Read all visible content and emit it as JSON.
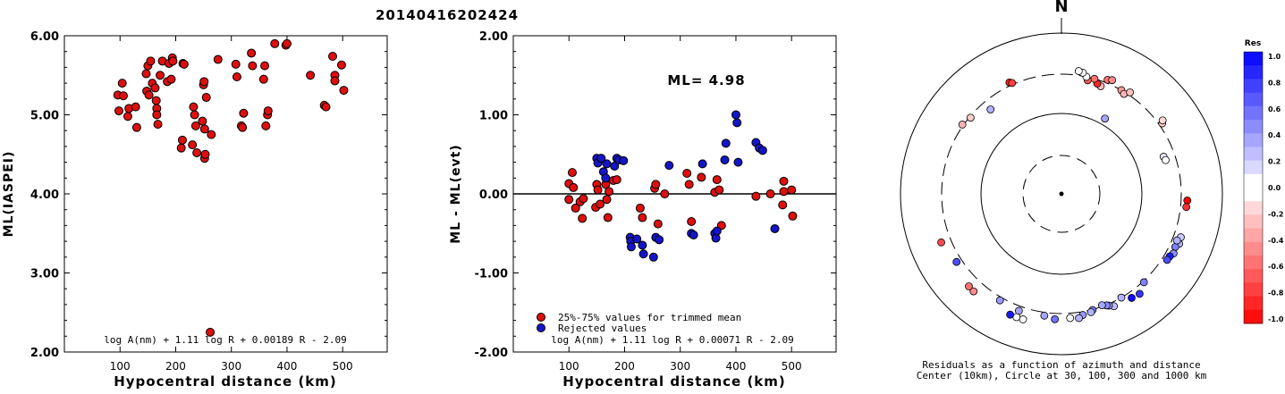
{
  "title": "20140416202424",
  "north_label": "N",
  "polar_caption": [
    "Residuals as a function of azimuth and distance",
    "Center (10km), Circle at 30, 100, 300 and 1000 km"
  ],
  "colorbar": {
    "title": "Res",
    "ticks": [
      "1.0",
      "0.8",
      "0.6",
      "0.4",
      "0.2",
      "0.0",
      "-0.2",
      "-0.4",
      "-0.6",
      "-0.8",
      "-1.0"
    ]
  },
  "colors": {
    "accepted": "#dd0f0f",
    "rejected": "#1515c8"
  },
  "chart_data": [
    {
      "type": "scatter",
      "title": "",
      "xlabel": "Hypocentral distance (km)",
      "ylabel": "ML(IASPEI)",
      "xlim": [
        0,
        580
      ],
      "ylim": [
        2.0,
        6.0
      ],
      "xticks": [
        "100",
        "200",
        "300",
        "400",
        "500"
      ],
      "yticks": [
        "2.00",
        "3.00",
        "4.00",
        "5.00",
        "6.00"
      ],
      "formula": "log A(nm) + 1.11 log R + 0.00189 R - 2.09",
      "points": [
        [
          96,
          5.25
        ],
        [
          98,
          5.05
        ],
        [
          104,
          5.4
        ],
        [
          106,
          5.24
        ],
        [
          114,
          4.98
        ],
        [
          116,
          5.08
        ],
        [
          128,
          5.1
        ],
        [
          130,
          4.84
        ],
        [
          147,
          5.52
        ],
        [
          148,
          5.3
        ],
        [
          150,
          5.62
        ],
        [
          152,
          5.25
        ],
        [
          155,
          5.68
        ],
        [
          158,
          5.4
        ],
        [
          163,
          5.34
        ],
        [
          165,
          5.18
        ],
        [
          166,
          5.08
        ],
        [
          166,
          5.0
        ],
        [
          168,
          4.88
        ],
        [
          172,
          5.5
        ],
        [
          176,
          5.68
        ],
        [
          185,
          5.42
        ],
        [
          188,
          5.65
        ],
        [
          192,
          5.45
        ],
        [
          194,
          5.72
        ],
        [
          195,
          5.68
        ],
        [
          210,
          4.58
        ],
        [
          212,
          4.68
        ],
        [
          213,
          5.65
        ],
        [
          215,
          5.64
        ],
        [
          230,
          4.62
        ],
        [
          232,
          5.1
        ],
        [
          234,
          5.0
        ],
        [
          236,
          4.86
        ],
        [
          238,
          4.52
        ],
        [
          248,
          4.92
        ],
        [
          250,
          5.38
        ],
        [
          251,
          5.42
        ],
        [
          252,
          4.82
        ],
        [
          252,
          4.45
        ],
        [
          253,
          4.5
        ],
        [
          255,
          5.22
        ],
        [
          262,
          2.25
        ],
        [
          264,
          4.75
        ],
        [
          276,
          5.7
        ],
        [
          308,
          5.64
        ],
        [
          310,
          5.48
        ],
        [
          318,
          4.86
        ],
        [
          320,
          4.84
        ],
        [
          322,
          5.02
        ],
        [
          336,
          5.78
        ],
        [
          338,
          5.62
        ],
        [
          358,
          5.45
        ],
        [
          360,
          5.62
        ],
        [
          362,
          4.86
        ],
        [
          365,
          5.0
        ],
        [
          366,
          5.05
        ],
        [
          378,
          5.9
        ],
        [
          398,
          5.88
        ],
        [
          400,
          5.9
        ],
        [
          442,
          5.5
        ],
        [
          467,
          5.12
        ],
        [
          470,
          5.1
        ],
        [
          482,
          5.74
        ],
        [
          486,
          5.5
        ],
        [
          486,
          5.43
        ],
        [
          498,
          5.63
        ],
        [
          502,
          5.31
        ]
      ]
    },
    {
      "type": "scatter",
      "title": "",
      "xlabel": "Hypocentral distance (km)",
      "ylabel": "ML - ML(evt)",
      "xlim": [
        0,
        580
      ],
      "ylim": [
        -2.0,
        2.0
      ],
      "xticks": [
        "100",
        "200",
        "300",
        "400",
        "500"
      ],
      "yticks": [
        "-2.00",
        "-1.00",
        "0.00",
        "1.00",
        "2.00"
      ],
      "hline": 0,
      "annotation": "ML= 4.98",
      "legend": [
        "25%-75% values for trimmed mean",
        "Rejected values"
      ],
      "formula": "log A(nm) + 1.11 log R + 0.00071 R - 2.09",
      "series": [
        {
          "name": "25%-75% values for trimmed mean",
          "points": [
            [
              100,
              0.13
            ],
            [
              100,
              -0.07
            ],
            [
              106,
              0.27
            ],
            [
              108,
              0.08
            ],
            [
              112,
              -0.18
            ],
            [
              120,
              -0.1
            ],
            [
              124,
              -0.31
            ],
            [
              126,
              -0.06
            ],
            [
              148,
              -0.17
            ],
            [
              150,
              0.12
            ],
            [
              152,
              0.05
            ],
            [
              156,
              -0.13
            ],
            [
              166,
              0.12
            ],
            [
              168,
              -0.07
            ],
            [
              170,
              -0.3
            ],
            [
              172,
              0.03
            ],
            [
              180,
              0.17
            ],
            [
              186,
              0.18
            ],
            [
              228,
              -0.18
            ],
            [
              232,
              -0.3
            ],
            [
              254,
              0.07
            ],
            [
              256,
              0.12
            ],
            [
              260,
              -0.38
            ],
            [
              272,
              0.0
            ],
            [
              312,
              0.26
            ],
            [
              316,
              0.12
            ],
            [
              320,
              -0.35
            ],
            [
              338,
              0.21
            ],
            [
              362,
              0.02
            ],
            [
              366,
              0.18
            ],
            [
              370,
              0.05
            ],
            [
              374,
              -0.4
            ],
            [
              436,
              -0.03
            ],
            [
              462,
              0.0
            ],
            [
              484,
              -0.14
            ],
            [
              486,
              0.03
            ],
            [
              486,
              0.16
            ],
            [
              500,
              0.05
            ],
            [
              502,
              -0.28
            ]
          ]
        },
        {
          "name": "Rejected values",
          "points": [
            [
              150,
              0.45
            ],
            [
              152,
              0.39
            ],
            [
              158,
              0.45
            ],
            [
              162,
              0.28
            ],
            [
              166,
              0.2
            ],
            [
              168,
              0.38
            ],
            [
              182,
              0.35
            ],
            [
              186,
              0.45
            ],
            [
              190,
              0.43
            ],
            [
              198,
              0.42
            ],
            [
              210,
              -0.55
            ],
            [
              211,
              -0.6
            ],
            [
              212,
              -0.67
            ],
            [
              222,
              -0.57
            ],
            [
              232,
              -0.65
            ],
            [
              234,
              -0.76
            ],
            [
              252,
              -0.8
            ],
            [
              256,
              -0.55
            ],
            [
              262,
              -0.58
            ],
            [
              280,
              0.36
            ],
            [
              320,
              -0.5
            ],
            [
              324,
              -0.52
            ],
            [
              340,
              0.38
            ],
            [
              362,
              -0.5
            ],
            [
              364,
              -0.56
            ],
            [
              366,
              -0.47
            ],
            [
              380,
              0.43
            ],
            [
              382,
              0.64
            ],
            [
              400,
              1.0
            ],
            [
              402,
              0.9
            ],
            [
              404,
              0.4
            ],
            [
              436,
              0.65
            ],
            [
              442,
              0.58
            ],
            [
              448,
              0.55
            ],
            [
              470,
              -0.44
            ]
          ]
        }
      ]
    },
    {
      "type": "scatter",
      "title": "",
      "coordinate_system": "polar",
      "radial_labels": [
        "Center (10km)",
        "30",
        "100",
        "300",
        "1000 km"
      ],
      "color_scale": "Res",
      "color_range": [
        -1.0,
        1.0
      ],
      "points": [
        {
          "az": 22,
          "dist_km": 330,
          "res": -0.55
        },
        {
          "az": 24,
          "dist_km": 345,
          "res": -0.45
        },
        {
          "az": 20,
          "dist_km": 260,
          "res": -0.25
        },
        {
          "az": 18,
          "dist_km": 270,
          "res": -0.85
        },
        {
          "az": 16,
          "dist_km": 300,
          "res": -0.55
        },
        {
          "az": 13,
          "dist_km": 275,
          "res": -0.65
        },
        {
          "az": 12,
          "dist_km": 300,
          "res": 0.0
        },
        {
          "az": 10,
          "dist_km": 330,
          "res": -0.05
        },
        {
          "az": 8,
          "dist_km": 340,
          "res": 0.05
        },
        {
          "az": 30,
          "dist_km": 300,
          "res": -0.4
        },
        {
          "az": 32,
          "dist_km": 285,
          "res": -0.3
        },
        {
          "az": 34,
          "dist_km": 325,
          "res": -0.25
        },
        {
          "az": 335,
          "dist_km": 330,
          "res": -0.85
        },
        {
          "az": 336,
          "dist_km": 315,
          "res": -0.75
        },
        {
          "az": 310,
          "dist_km": 290,
          "res": -0.2
        },
        {
          "az": 305,
          "dist_km": 310,
          "res": -0.3
        },
        {
          "az": 320,
          "dist_km": 230,
          "res": 0.3
        },
        {
          "az": 30,
          "dist_km": 120,
          "res": 0.35
        },
        {
          "az": 55,
          "dist_km": 330,
          "res": -0.2
        },
        {
          "az": 54,
          "dist_km": 350,
          "res": -0.15
        },
        {
          "az": 70,
          "dist_km": 220,
          "res": 0.1
        },
        {
          "az": 72,
          "dist_km": 225,
          "res": 0.05
        },
        {
          "az": 93,
          "dist_km": 360,
          "res": -1.0
        },
        {
          "az": 96,
          "dist_km": 355,
          "res": -0.8
        },
        {
          "az": 110,
          "dist_km": 370,
          "res": 0.2
        },
        {
          "az": 113,
          "dist_km": 380,
          "res": 0.3
        },
        {
          "az": 115,
          "dist_km": 355,
          "res": 0.5
        },
        {
          "az": 118,
          "dist_km": 370,
          "res": 0.45
        },
        {
          "az": 112,
          "dist_km": 345,
          "res": 0.3
        },
        {
          "az": 120,
          "dist_km": 350,
          "res": 0.9
        },
        {
          "az": 122,
          "dist_km": 345,
          "res": 0.7
        },
        {
          "az": 137,
          "dist_km": 310,
          "res": 0.5
        },
        {
          "az": 142,
          "dist_km": 370,
          "res": 0.8
        },
        {
          "az": 146,
          "dist_km": 355,
          "res": 0.95
        },
        {
          "az": 150,
          "dist_km": 300,
          "res": 0.3
        },
        {
          "az": 155,
          "dist_km": 340,
          "res": 0.25
        },
        {
          "az": 157,
          "dist_km": 315,
          "res": 0.4
        },
        {
          "az": 158,
          "dist_km": 305,
          "res": 0.45
        },
        {
          "az": 160,
          "dist_km": 290,
          "res": 0.35
        },
        {
          "az": 165,
          "dist_km": 305,
          "res": 0.5
        },
        {
          "az": 166,
          "dist_km": 320,
          "res": 0.3
        },
        {
          "az": 170,
          "dist_km": 330,
          "res": 0.4
        },
        {
          "az": 172,
          "dist_km": 355,
          "res": 0.3
        },
        {
          "az": 176,
          "dist_km": 345,
          "res": 0.0
        },
        {
          "az": 183,
          "dist_km": 355,
          "res": 0.55
        },
        {
          "az": 188,
          "dist_km": 330,
          "res": 0.35
        },
        {
          "az": 200,
          "dist_km": 345,
          "res": 0.35
        },
        {
          "az": 197,
          "dist_km": 420,
          "res": 0.0
        },
        {
          "az": 200,
          "dist_km": 420,
          "res": 0.05
        },
        {
          "az": 203,
          "dist_km": 420,
          "res": 0.9
        },
        {
          "az": 210,
          "dist_km": 330,
          "res": 0.4
        },
        {
          "az": 222,
          "dist_km": 420,
          "res": -0.45
        },
        {
          "az": 225,
          "dist_km": 415,
          "res": -0.55
        },
        {
          "az": 237,
          "dist_km": 350,
          "res": 0.7
        },
        {
          "az": 248,
          "dist_km": 400,
          "res": -0.7
        }
      ]
    }
  ]
}
